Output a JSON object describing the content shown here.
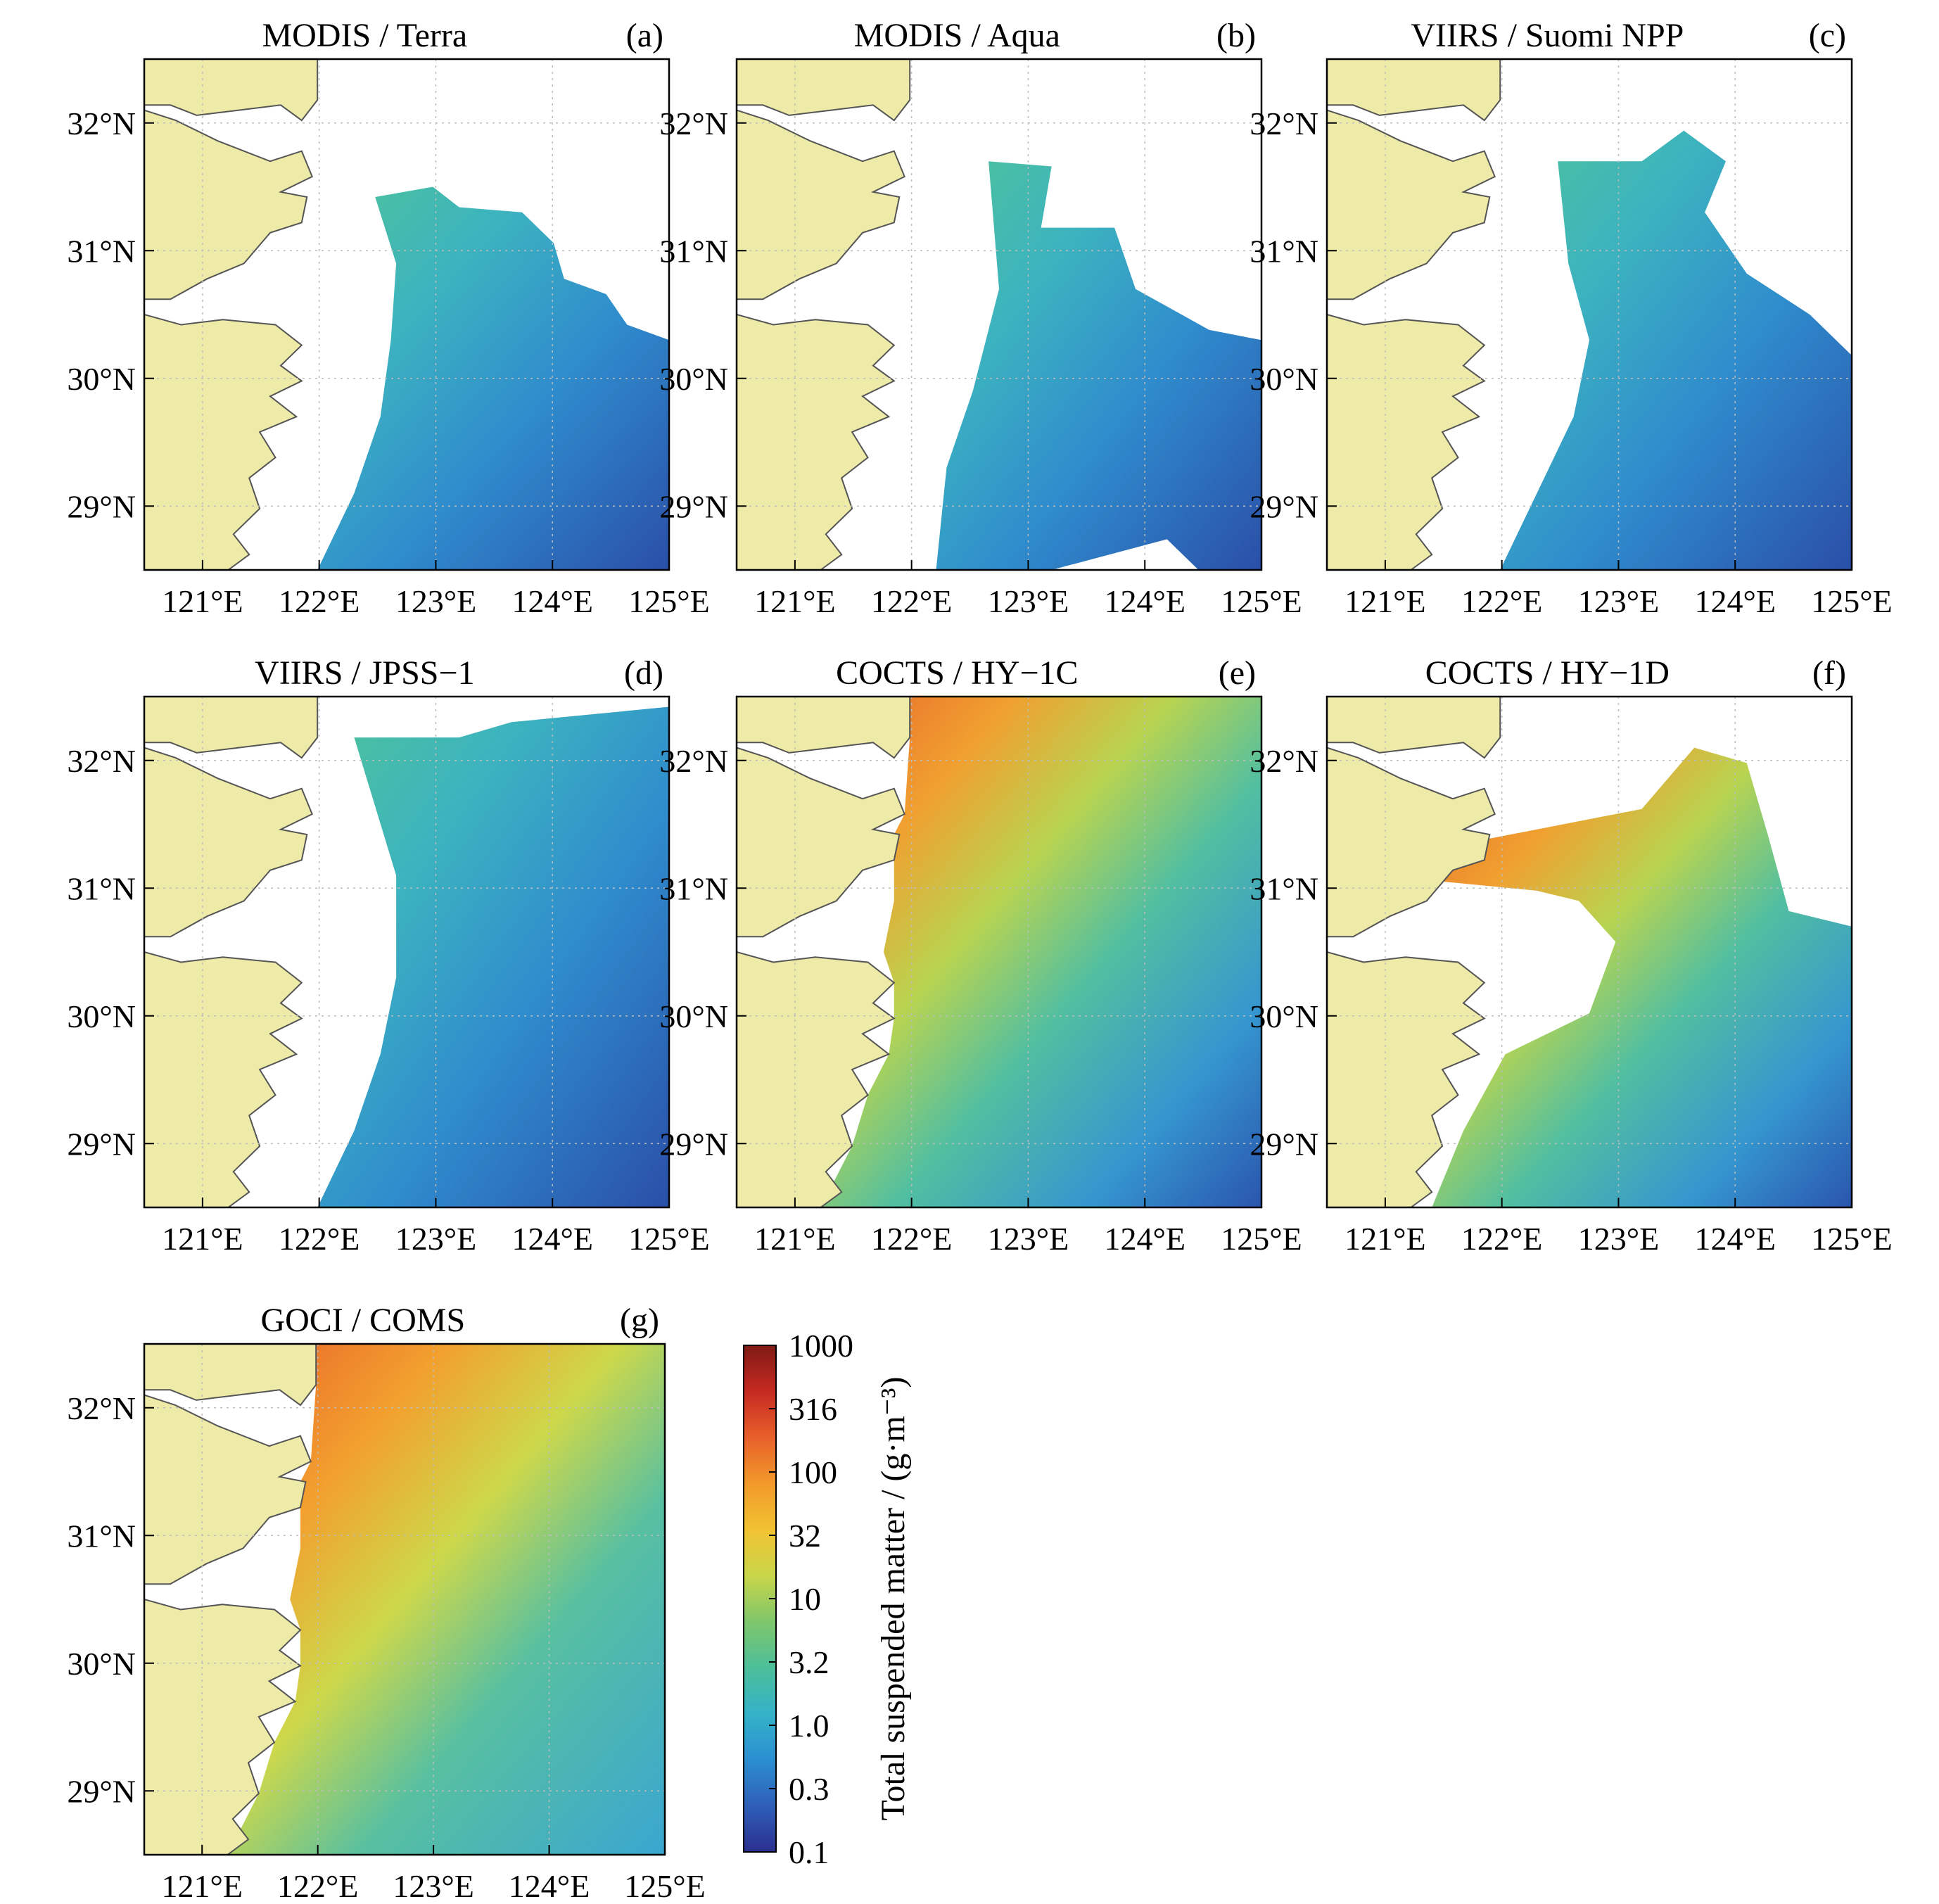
{
  "panels": [
    {
      "title": "MODIS / Terra",
      "letter": "(a)",
      "variant": "modis-terra"
    },
    {
      "title": "MODIS / Aqua",
      "letter": "(b)",
      "variant": "modis-aqua"
    },
    {
      "title": "VIIRS / Suomi NPP",
      "letter": "(c)",
      "variant": "viirs-npp"
    },
    {
      "title": "VIIRS / JPSS−1",
      "letter": "(d)",
      "variant": "viirs-jpss"
    },
    {
      "title": "COCTS / HY−1C",
      "letter": "(e)",
      "variant": "cocts-1c"
    },
    {
      "title": "COCTS / HY−1D",
      "letter": "(f)",
      "variant": "cocts-1d"
    },
    {
      "title": "GOCI / COMS",
      "letter": "(g)",
      "variant": "goci"
    }
  ],
  "axes": {
    "lon_ticks": [
      "121°E",
      "122°E",
      "123°E",
      "124°E",
      "125°E"
    ],
    "lat_ticks": [
      "32°N",
      "31°N",
      "30°N",
      "29°N"
    ],
    "lon_values": [
      121,
      122,
      123,
      124,
      125
    ],
    "lat_values": [
      32,
      31,
      30,
      29
    ],
    "lon_range": [
      120.5,
      125.0
    ],
    "lat_range": [
      28.5,
      32.5
    ]
  },
  "colorbar": {
    "label": "Total suspended matter / (g·m⁻³)",
    "ticks": [
      "1000",
      "316",
      "100",
      "32",
      "10",
      "3.2",
      "1.0",
      "0.3",
      "0.1"
    ],
    "colors": [
      "#2b2f8f",
      "#2f5fb8",
      "#2b8fd1",
      "#34b2c8",
      "#4cbf9a",
      "#7fc66b",
      "#c9d64a",
      "#f1c232",
      "#f39a2b",
      "#e8602a",
      "#c62a22",
      "#7f1a14"
    ]
  },
  "colors": {
    "land": "#eeeba8",
    "coast": "#555555",
    "nodata": "#ffffff",
    "grid": "#bdbdbd"
  }
}
